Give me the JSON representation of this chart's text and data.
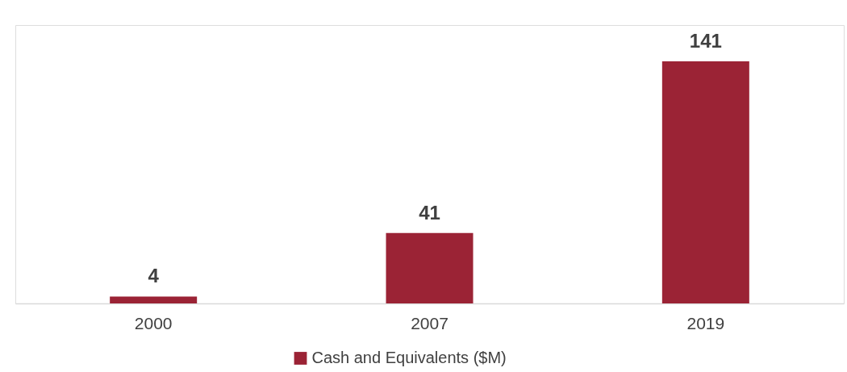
{
  "chart_data": {
    "type": "bar",
    "categories": [
      "2000",
      "2007",
      "2019"
    ],
    "series": [
      {
        "name": "Cash and Equivalents ($M)",
        "color": "#9b2335",
        "values": [
          4,
          41,
          141
        ]
      }
    ],
    "data_labels": true,
    "legend": "bottom"
  }
}
